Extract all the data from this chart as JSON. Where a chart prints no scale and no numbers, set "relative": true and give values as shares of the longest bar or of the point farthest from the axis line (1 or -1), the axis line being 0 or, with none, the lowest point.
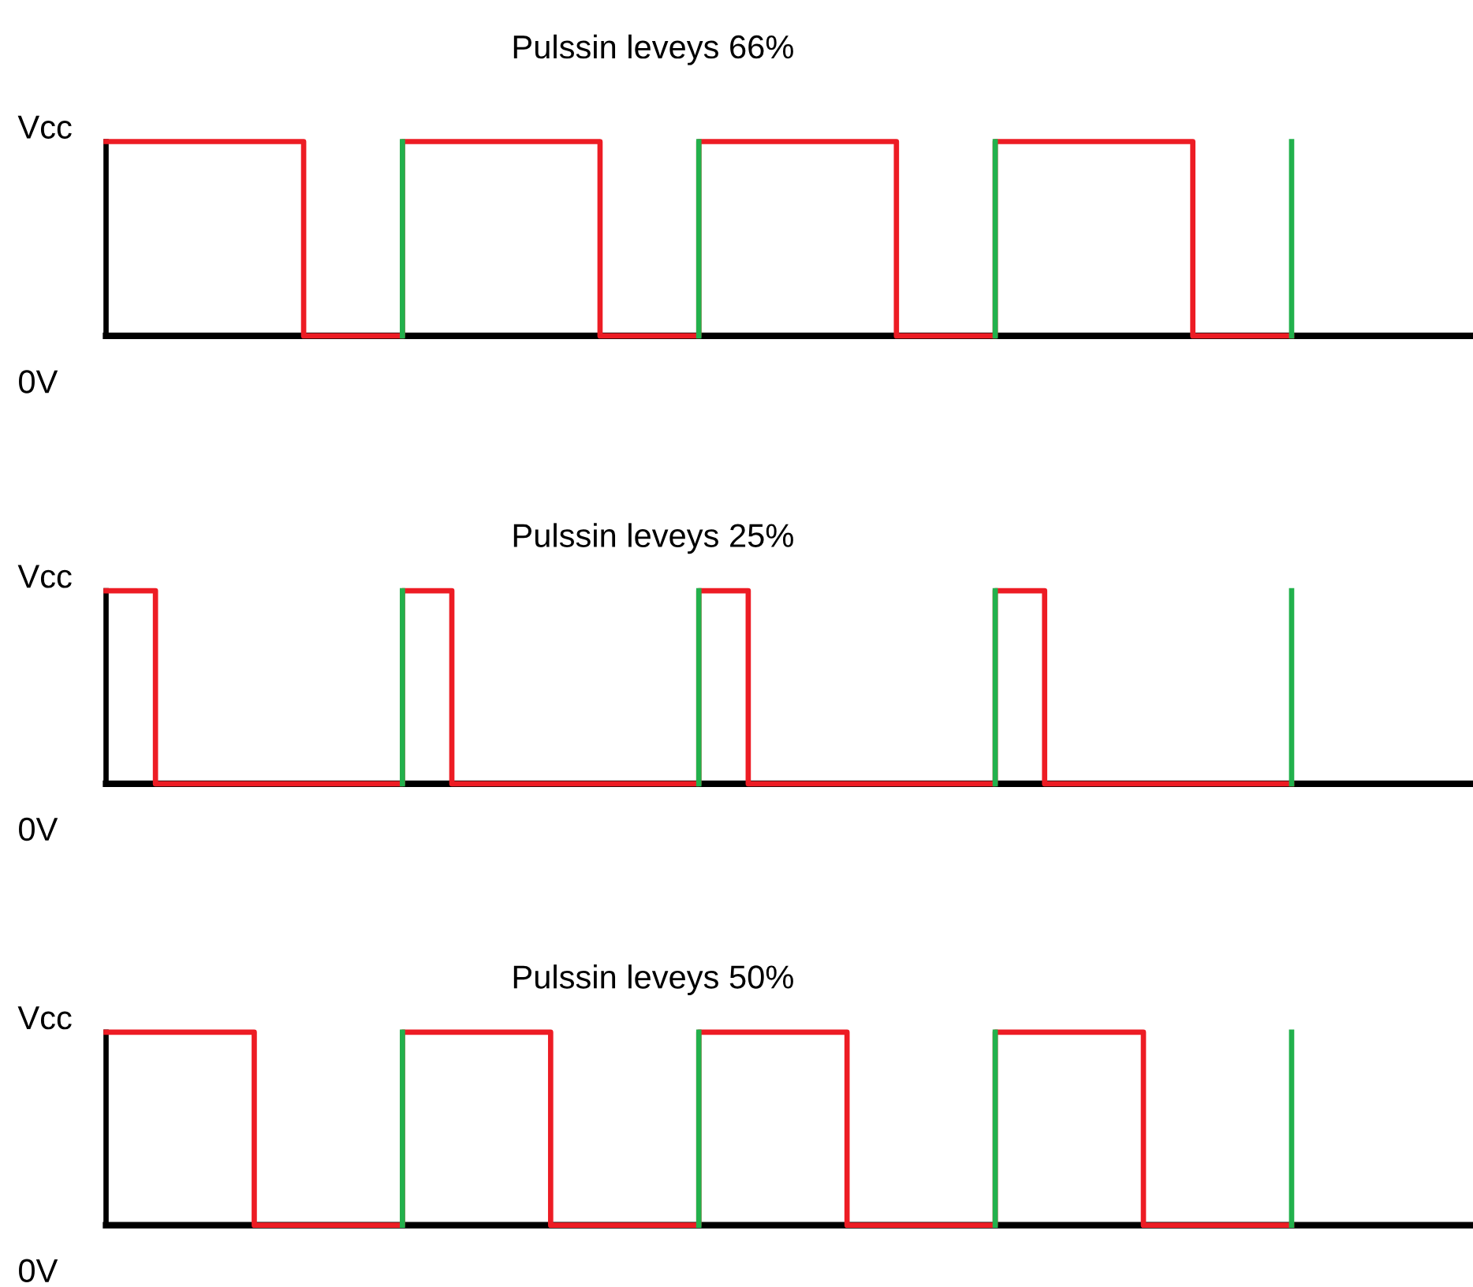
{
  "chart_data": [
    {
      "type": "step",
      "title": "Pulssin leveys 66%",
      "annotations": [
        "Vcc",
        "0V"
      ],
      "categories": [
        null,
        null,
        null,
        null,
        null,
        null,
        null,
        null,
        null,
        null,
        null,
        null,
        null
      ],
      "values": [
        1,
        1,
        0,
        1,
        1,
        0,
        1,
        1,
        0,
        1,
        1,
        0,
        0
      ],
      "color": "#ed1c24",
      "relative": true,
      "grid": "x"
    },
    {
      "type": "step",
      "title": "Pulssin leveys 25%",
      "annotations": [
        "Vcc",
        "0V"
      ],
      "categories": [
        null,
        null,
        null,
        null,
        null,
        null,
        null,
        null,
        null,
        null,
        null,
        null,
        null,
        null,
        null,
        null,
        null,
        null,
        null,
        null,
        null,
        null,
        null,
        null,
        null
      ],
      "values": [
        1,
        0,
        0,
        0,
        0,
        0,
        1,
        0,
        0,
        0,
        0,
        0,
        1,
        0,
        0,
        0,
        0,
        0,
        1,
        0,
        0,
        0,
        0,
        0,
        0
      ],
      "color": "#ed1c24",
      "relative": true,
      "grid": "x"
    },
    {
      "type": "step",
      "title": "Pulssin leveys 50%",
      "annotations": [
        "Vcc",
        "0V"
      ],
      "categories": [
        null,
        null,
        null,
        null,
        null,
        null,
        null,
        null,
        null
      ],
      "values": [
        1,
        0,
        1,
        0,
        1,
        0,
        1,
        0,
        0
      ],
      "color": "#ed1c24",
      "relative": true,
      "grid": "x"
    }
  ]
}
